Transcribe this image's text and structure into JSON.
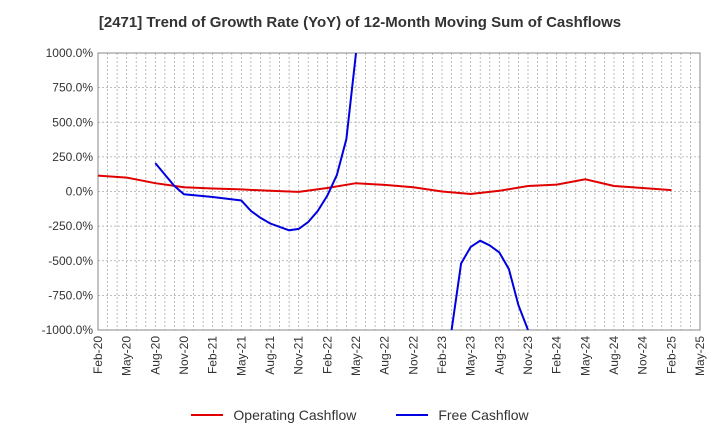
{
  "chart_data": {
    "type": "line",
    "title": "[2471]  Trend of Growth Rate (YoY) of 12-Month Moving Sum of Cashflows",
    "xlabel": "",
    "ylabel": "",
    "ylim": [
      -1000,
      1000
    ],
    "yticks": [
      1000,
      750,
      500,
      250,
      0,
      -250,
      -500,
      -750,
      -1000
    ],
    "ytick_labels": [
      "1000.0%",
      "750.0%",
      "500.0%",
      "250.0%",
      "0.0%",
      "-250.0%",
      "-500.0%",
      "-750.0%",
      "-1000.0%"
    ],
    "x_tick_labels": [
      "Feb-20",
      "May-20",
      "Aug-20",
      "Nov-20",
      "Feb-21",
      "May-21",
      "Aug-21",
      "Nov-21",
      "Feb-22",
      "May-22",
      "Aug-22",
      "Nov-22",
      "Feb-23",
      "May-23",
      "Aug-23",
      "Nov-23",
      "Feb-24",
      "May-24",
      "Aug-24",
      "Nov-24",
      "Feb-25",
      "May-25"
    ],
    "x_months": [
      "2020-02",
      "2020-03",
      "2020-04",
      "2020-05",
      "2020-06",
      "2020-07",
      "2020-08",
      "2020-09",
      "2020-10",
      "2020-11",
      "2020-12",
      "2021-01",
      "2021-02",
      "2021-03",
      "2021-04",
      "2021-05",
      "2021-06",
      "2021-07",
      "2021-08",
      "2021-09",
      "2021-10",
      "2021-11",
      "2021-12",
      "2022-01",
      "2022-02",
      "2022-03",
      "2022-04",
      "2022-05",
      "2022-06",
      "2022-07",
      "2022-08",
      "2022-09",
      "2022-10",
      "2022-11",
      "2022-12",
      "2023-01",
      "2023-02",
      "2023-03",
      "2023-04",
      "2023-05",
      "2023-06",
      "2023-07",
      "2023-08",
      "2023-09",
      "2023-10",
      "2023-11",
      "2023-12",
      "2024-01",
      "2024-02",
      "2024-03",
      "2024-04",
      "2024-05",
      "2024-06",
      "2024-07",
      "2024-08",
      "2024-09",
      "2024-10",
      "2024-11",
      "2024-12",
      "2025-01",
      "2025-02",
      "2025-03",
      "2025-04",
      "2025-05"
    ],
    "grid": true,
    "legend_position": "bottom-center",
    "series": [
      {
        "name": "Operating Cashflow",
        "color": "#e00000",
        "values": [
          115,
          null,
          null,
          100,
          null,
          null,
          60,
          null,
          null,
          30,
          null,
          null,
          22,
          null,
          null,
          15,
          null,
          null,
          5,
          null,
          null,
          -3,
          null,
          null,
          25,
          null,
          null,
          60,
          null,
          null,
          48,
          null,
          null,
          30,
          null,
          null,
          0,
          null,
          null,
          -18,
          null,
          null,
          5,
          null,
          null,
          40,
          null,
          null,
          50,
          null,
          null,
          88,
          null,
          null,
          40,
          null,
          null,
          25,
          null,
          null,
          10,
          null,
          null,
          null
        ]
      },
      {
        "name": "Free Cashflow",
        "color": "#0000e0",
        "values": [
          null,
          null,
          null,
          null,
          null,
          null,
          205,
          null,
          40,
          -20,
          null,
          null,
          -40,
          null,
          null,
          -65,
          -140,
          -190,
          -230,
          null,
          -280,
          -270,
          -220,
          -140,
          -30,
          120,
          380,
          1000,
          null,
          null,
          null,
          null,
          null,
          null,
          null,
          null,
          null,
          -1000,
          -520,
          -400,
          -355,
          -390,
          -440,
          -560,
          -820,
          -1000,
          null,
          null,
          null,
          null,
          null,
          null,
          null,
          null,
          null,
          null,
          null,
          null,
          null,
          null,
          null,
          null,
          null,
          null
        ]
      }
    ]
  }
}
